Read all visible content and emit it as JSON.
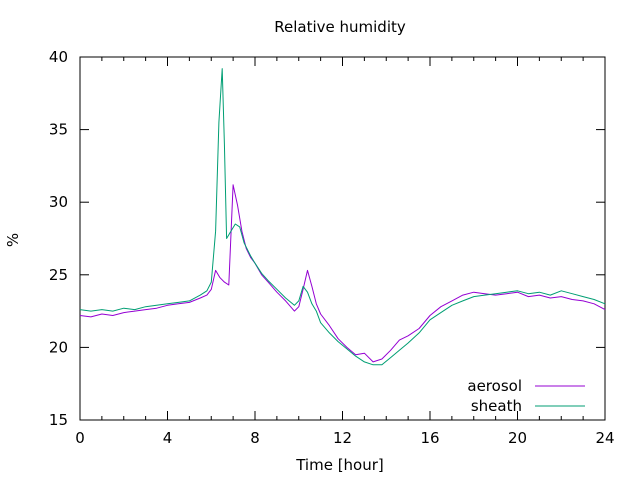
{
  "chart_data": {
    "type": "line",
    "title": "Relative humidity",
    "xlabel": "Time [hour]",
    "ylabel": "%",
    "xlim": [
      0,
      24
    ],
    "ylim": [
      15,
      40
    ],
    "xticks": [
      0,
      4,
      8,
      12,
      16,
      20,
      24
    ],
    "yticks": [
      15,
      20,
      25,
      30,
      35,
      40
    ],
    "grid": false,
    "legend_position": "bottom-right",
    "series": [
      {
        "name": "aerosol",
        "color": "#9400d3",
        "x": [
          0,
          0.5,
          1,
          1.5,
          2,
          2.5,
          3,
          3.5,
          4,
          4.5,
          5,
          5.5,
          5.8,
          6.0,
          6.2,
          6.4,
          6.6,
          6.8,
          7.0,
          7.2,
          7.4,
          7.6,
          7.8,
          8.0,
          8.3,
          8.6,
          9.0,
          9.4,
          9.8,
          10.0,
          10.2,
          10.4,
          10.6,
          10.8,
          11.0,
          11.4,
          11.8,
          12.2,
          12.6,
          13.0,
          13.4,
          13.8,
          14.2,
          14.6,
          15.0,
          15.5,
          16.0,
          16.5,
          17.0,
          17.5,
          18.0,
          18.5,
          19.0,
          19.5,
          20.0,
          20.5,
          21.0,
          21.5,
          22.0,
          22.5,
          23.0,
          23.5,
          24.0
        ],
        "y": [
          22.2,
          22.1,
          22.3,
          22.2,
          22.4,
          22.5,
          22.6,
          22.7,
          22.9,
          23.0,
          23.1,
          23.4,
          23.6,
          24.0,
          25.3,
          24.8,
          24.5,
          24.3,
          31.2,
          29.8,
          28.0,
          26.8,
          26.2,
          25.8,
          25.0,
          24.5,
          23.8,
          23.2,
          22.5,
          22.8,
          24.0,
          25.3,
          24.2,
          23.0,
          22.3,
          21.5,
          20.6,
          20.0,
          19.5,
          19.6,
          19.0,
          19.2,
          19.8,
          20.5,
          20.8,
          21.3,
          22.2,
          22.8,
          23.2,
          23.6,
          23.8,
          23.7,
          23.6,
          23.7,
          23.8,
          23.5,
          23.6,
          23.4,
          23.5,
          23.3,
          23.2,
          23.0,
          22.6
        ]
      },
      {
        "name": "sheath",
        "color": "#009e73",
        "x": [
          0,
          0.5,
          1,
          1.5,
          2,
          2.5,
          3,
          3.5,
          4,
          4.5,
          5,
          5.5,
          5.8,
          6.0,
          6.2,
          6.35,
          6.5,
          6.6,
          6.7,
          6.9,
          7.1,
          7.3,
          7.5,
          7.8,
          8.0,
          8.3,
          8.6,
          9.0,
          9.4,
          9.8,
          10.0,
          10.2,
          10.4,
          10.6,
          10.8,
          11.0,
          11.4,
          11.8,
          12.2,
          12.6,
          13.0,
          13.4,
          13.8,
          14.2,
          14.6,
          15.0,
          15.5,
          16.0,
          16.5,
          17.0,
          17.5,
          18.0,
          18.5,
          19.0,
          19.5,
          20.0,
          20.5,
          21.0,
          21.5,
          22.0,
          22.5,
          23.0,
          23.5,
          24.0
        ],
        "y": [
          22.6,
          22.5,
          22.6,
          22.5,
          22.7,
          22.6,
          22.8,
          22.9,
          23.0,
          23.1,
          23.2,
          23.6,
          23.9,
          24.5,
          28.0,
          35.5,
          39.2,
          34.0,
          27.5,
          28.0,
          28.5,
          28.3,
          27.2,
          26.3,
          25.8,
          25.1,
          24.6,
          24.0,
          23.4,
          22.9,
          23.2,
          24.2,
          23.8,
          23.0,
          22.5,
          21.7,
          21.0,
          20.4,
          19.9,
          19.4,
          19.0,
          18.8,
          18.8,
          19.3,
          19.8,
          20.3,
          21.0,
          21.9,
          22.4,
          22.9,
          23.2,
          23.5,
          23.6,
          23.7,
          23.8,
          23.9,
          23.7,
          23.8,
          23.6,
          23.9,
          23.7,
          23.5,
          23.3,
          23.0
        ]
      }
    ]
  }
}
